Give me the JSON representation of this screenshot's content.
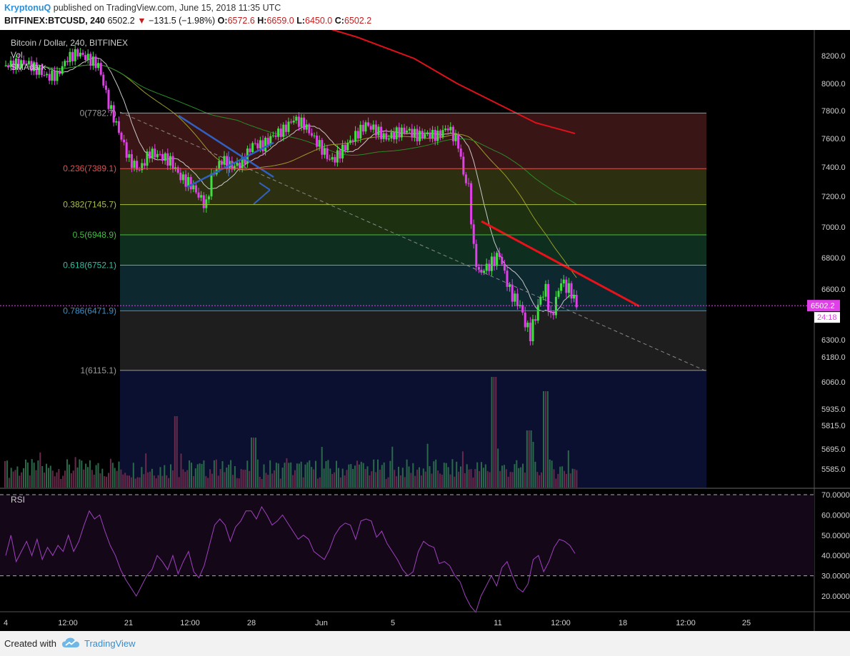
{
  "header": {
    "author": "KryptonuQ",
    "published": "published on TradingView.com, June 15, 2018 11:35 UTC",
    "symbol": "BITFINEX:BTCUSD, 240",
    "last": "6502.2",
    "change": "−131.5 (−1.98%)",
    "open_label": "O:",
    "open": "6572.6",
    "high_label": "H:",
    "high": "6659.0",
    "low_label": "L:",
    "low": "6450.0",
    "close_label": "C:",
    "close": "6502.2"
  },
  "legend": {
    "title": "Bitcoin / Dollar, 240, BITFINEX",
    "vol": "Vol",
    "sma": "SMAdark"
  },
  "footer": {
    "created_with": "Created with",
    "brand": "TradingView"
  },
  "colors": {
    "up": "#3fe03f",
    "down": "#e040e8",
    "fib_0": "#9a9a9a",
    "fib_236": "#e05050",
    "fib_382": "#a8c040",
    "fib_5": "#40c040",
    "fib_618": "#30c0a0",
    "fib_786": "#4090c8",
    "fib_1": "#9a9a9a",
    "sma_red": "#e0101a",
    "price_tag": "#e040e8"
  },
  "chart_data": [
    {
      "type": "candlestick",
      "title": "Bitcoin / Dollar, 240, BITFINEX",
      "y_axis_ticks": [
        "8200.0",
        "8000.0",
        "7800.0",
        "7600.0",
        "7400.0",
        "7200.0",
        "7000.0",
        "6800.0",
        "6600.0",
        "6300.0",
        "6180.0",
        "6060.0",
        "5935.0",
        "5815.0",
        "5695.0",
        "5585.0"
      ],
      "x_axis_ticks": [
        "4",
        "12:00",
        "21",
        "12:00",
        "28",
        "Jun",
        "5",
        "11",
        "12:00",
        "18",
        "12:00",
        "25"
      ],
      "current_price": "6502.2",
      "countdown": "24:18",
      "fib_levels": [
        {
          "label": "0(7782.7)",
          "ratio": 0,
          "price": 7782.7
        },
        {
          "label": "0.236(7389.1)",
          "ratio": 0.236,
          "price": 7389.1
        },
        {
          "label": "0.382(7145.7)",
          "ratio": 0.382,
          "price": 7145.7
        },
        {
          "label": "0.5(6948.9)",
          "ratio": 0.5,
          "price": 6948.9
        },
        {
          "label": "0.618(6752.1)",
          "ratio": 0.618,
          "price": 6752.1
        },
        {
          "label": "0.786(6471.9)",
          "ratio": 0.786,
          "price": 6471.9
        },
        {
          "label": "1(6115.1)",
          "ratio": 1,
          "price": 6115.1
        }
      ],
      "price_path": [
        [
          0,
          8130
        ],
        [
          4,
          8150
        ],
        [
          8,
          8050
        ],
        [
          10,
          8060
        ],
        [
          12,
          8180
        ],
        [
          14,
          8220
        ],
        [
          16,
          8180
        ],
        [
          18,
          8130
        ],
        [
          19,
          8000
        ],
        [
          20,
          7850
        ],
        [
          22,
          7650
        ],
        [
          24,
          7450
        ],
        [
          26,
          7380
        ],
        [
          28,
          7500
        ],
        [
          30,
          7480
        ],
        [
          32,
          7440
        ],
        [
          34,
          7330
        ],
        [
          36,
          7280
        ],
        [
          38,
          7180
        ],
        [
          39,
          7140
        ],
        [
          40,
          7330
        ],
        [
          42,
          7450
        ],
        [
          44,
          7400
        ],
        [
          46,
          7430
        ],
        [
          48,
          7560
        ],
        [
          50,
          7550
        ],
        [
          52,
          7620
        ],
        [
          54,
          7660
        ],
        [
          56,
          7740
        ],
        [
          58,
          7700
        ],
        [
          60,
          7600
        ],
        [
          62,
          7500
        ],
        [
          63,
          7450
        ],
        [
          64,
          7460
        ],
        [
          66,
          7540
        ],
        [
          68,
          7620
        ],
        [
          70,
          7700
        ],
        [
          72,
          7660
        ],
        [
          74,
          7600
        ],
        [
          76,
          7640
        ],
        [
          78,
          7660
        ],
        [
          80,
          7620
        ],
        [
          82,
          7630
        ],
        [
          84,
          7620
        ],
        [
          86,
          7680
        ],
        [
          88,
          7560
        ],
        [
          89,
          7350
        ],
        [
          90,
          7260
        ],
        [
          91,
          6850
        ],
        [
          92,
          6700
        ],
        [
          94,
          6750
        ],
        [
          96,
          6820
        ],
        [
          97,
          6700
        ],
        [
          98,
          6590
        ],
        [
          99,
          6540
        ],
        [
          100,
          6500
        ],
        [
          101,
          6400
        ],
        [
          102,
          6330
        ],
        [
          104,
          6550
        ],
        [
          105,
          6600
        ],
        [
          106,
          6420
        ],
        [
          108,
          6650
        ],
        [
          110,
          6580
        ],
        [
          111,
          6502
        ]
      ],
      "rsi": {
        "label": "RSI",
        "ticks": [
          "70.0000",
          "60.0000",
          "50.0000",
          "40.0000",
          "30.0000",
          "20.0000"
        ],
        "bands": [
          30,
          70
        ],
        "values": [
          40,
          50,
          37,
          42,
          47,
          40,
          48,
          38,
          44,
          40,
          45,
          42,
          50,
          42,
          47,
          55,
          62,
          58,
          60,
          52,
          45,
          40,
          33,
          28,
          24,
          20,
          25,
          30,
          33,
          40,
          37,
          33,
          40,
          31,
          37,
          42,
          32,
          29,
          35,
          45,
          55,
          58,
          55,
          47,
          54,
          57,
          62,
          62,
          58,
          64,
          60,
          55,
          57,
          60,
          56,
          52,
          48,
          50,
          48,
          42,
          40,
          38,
          43,
          50,
          54,
          56,
          55,
          48,
          57,
          58,
          57,
          49,
          52,
          46,
          42,
          38,
          33,
          30,
          32,
          42,
          47,
          45,
          44,
          36,
          37,
          35,
          30,
          27,
          20,
          15,
          12,
          20,
          25,
          30,
          25,
          34,
          37,
          30,
          24,
          22,
          26,
          38,
          40,
          32,
          37,
          44,
          48,
          47,
          45,
          41
        ]
      }
    }
  ]
}
